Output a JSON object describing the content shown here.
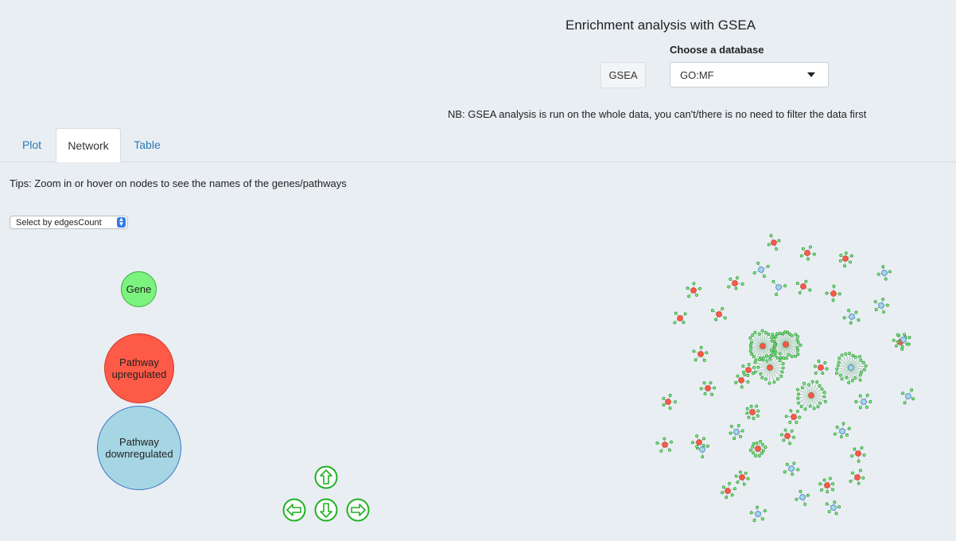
{
  "header": {
    "title": "Enrichment analysis with GSEA",
    "gsea_button": "GSEA",
    "db_label": "Choose a database",
    "db_selected": "GO:MF",
    "note": "NB: GSEA analysis is run on the whole data, you can't/there is no need to filter the data first"
  },
  "tabs": [
    {
      "label": "Plot",
      "active": false
    },
    {
      "label": "Network",
      "active": true
    },
    {
      "label": "Table",
      "active": false
    }
  ],
  "network_panel": {
    "tips": "Tips: Zoom in or hover on nodes to see the names of the genes/pathways",
    "select_by": "Select by edgesCount",
    "legend": {
      "gene": "Gene",
      "up_line1": "Pathway",
      "up_line2": "upregulated",
      "down_line1": "Pathway",
      "down_line2": "downregulated"
    },
    "nav_icons": [
      "arrow-up-icon",
      "arrow-left-icon",
      "arrow-down-icon",
      "arrow-right-icon"
    ]
  },
  "colors": {
    "gene": "#7cf37f",
    "pathway_up": "#fd5a47",
    "pathway_down": "#a6d6e3",
    "link": "#2a7ab0",
    "nav_green": "#22b022"
  },
  "network": {
    "clusters": [
      {
        "type": "up",
        "n": 4
      },
      {
        "type": "up",
        "n": 5
      },
      {
        "type": "up",
        "n": 6
      },
      {
        "type": "down",
        "n": 4
      },
      {
        "type": "up",
        "n": 5
      },
      {
        "type": "down",
        "n": 3
      },
      {
        "type": "up",
        "n": 4
      },
      {
        "type": "up",
        "n": 5
      },
      {
        "type": "up",
        "n": 4
      },
      {
        "type": "down",
        "n": 4
      },
      {
        "type": "down",
        "n": 5
      },
      {
        "type": "up",
        "n": 4
      },
      {
        "type": "down",
        "n": 5
      },
      {
        "type": "up",
        "n": 4
      },
      {
        "type": "up",
        "n": 6
      },
      {
        "type": "down",
        "n": 6
      },
      {
        "type": "up",
        "n": 26
      },
      {
        "type": "up",
        "n": 30
      },
      {
        "type": "up",
        "n": 20
      },
      {
        "type": "up",
        "n": 5
      },
      {
        "type": "up",
        "n": 6
      },
      {
        "type": "down",
        "n": 24
      },
      {
        "type": "up",
        "n": 6
      },
      {
        "type": "up",
        "n": 20
      },
      {
        "type": "up",
        "n": 6
      },
      {
        "type": "up",
        "n": 5
      },
      {
        "type": "down",
        "n": 6
      },
      {
        "type": "down",
        "n": 4
      },
      {
        "type": "up",
        "n": 5
      },
      {
        "type": "up",
        "n": 8
      },
      {
        "type": "up",
        "n": 6
      },
      {
        "type": "down",
        "n": 6
      },
      {
        "type": "up",
        "n": 6
      },
      {
        "type": "up",
        "n": 5
      },
      {
        "type": "down",
        "n": 6
      },
      {
        "type": "up",
        "n": 12
      },
      {
        "type": "up",
        "n": 5
      },
      {
        "type": "down",
        "n": 5
      },
      {
        "type": "up",
        "n": 6
      },
      {
        "type": "up",
        "n": 6
      },
      {
        "type": "down",
        "n": 4
      },
      {
        "type": "up",
        "n": 5
      },
      {
        "type": "up",
        "n": 7
      },
      {
        "type": "down",
        "n": 5
      },
      {
        "type": "down",
        "n": 5
      },
      {
        "type": "up",
        "n": 5
      },
      {
        "type": "down",
        "n": 3
      }
    ]
  }
}
